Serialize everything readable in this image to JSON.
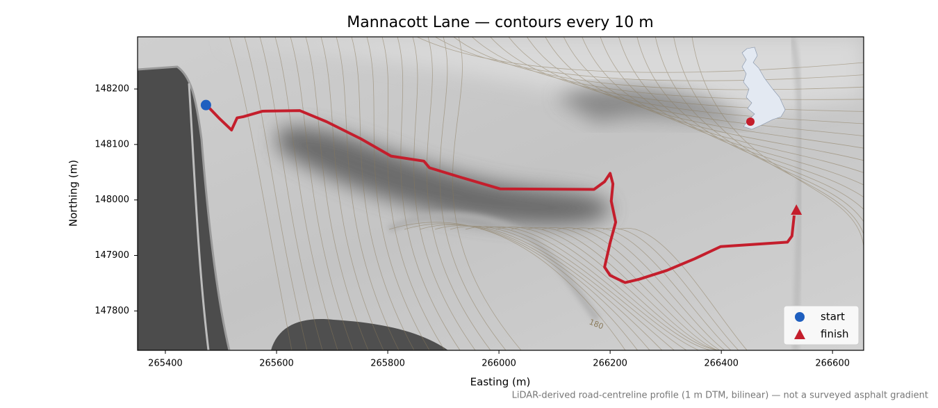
{
  "chart_data": {
    "type": "line",
    "title": "Mannacott Lane — contours every 10 m",
    "xlabel": "Easting (m)",
    "ylabel": "Northing (m)",
    "footnote": "LiDAR-derived road-centreline profile (1 m DTM, bilinear) — not a surveyed asphalt gradient",
    "contour_label": "180",
    "xlim": [
      265350,
      266656
    ],
    "ylim": [
      147729,
      148294
    ],
    "xticks": [
      265400,
      265600,
      265800,
      266000,
      266200,
      266400,
      266600
    ],
    "yticks": [
      147800,
      147900,
      148000,
      148100,
      148200
    ],
    "route": {
      "color": "#c41e2c",
      "x": [
        265474,
        265496,
        265519,
        265529,
        265540,
        265575,
        265642,
        265690,
        265752,
        265806,
        265865,
        265875,
        265934,
        266002,
        266171,
        266190,
        266200,
        266205,
        266202,
        266210,
        266200,
        266190,
        266200,
        266227,
        266252,
        266302,
        266352,
        266399,
        266519,
        266527,
        266531
      ],
      "y": [
        148171,
        148148,
        148126,
        148148,
        148150,
        148160,
        148161,
        148141,
        148110,
        148079,
        148070,
        148058,
        148040,
        148020,
        148019,
        148033,
        148048,
        148029,
        147998,
        147960,
        147923,
        147879,
        147864,
        147851,
        147857,
        147873,
        147894,
        147916,
        147924,
        147935,
        147972
      ]
    },
    "markers": [
      {
        "name": "start",
        "color": "#1f5fbf",
        "marker": "circle",
        "x": 265473,
        "y": 148171
      },
      {
        "name": "finish",
        "color": "#c41e2c",
        "marker": "triangle",
        "x": 266535,
        "y": 147982
      }
    ],
    "legend": "lower right"
  }
}
